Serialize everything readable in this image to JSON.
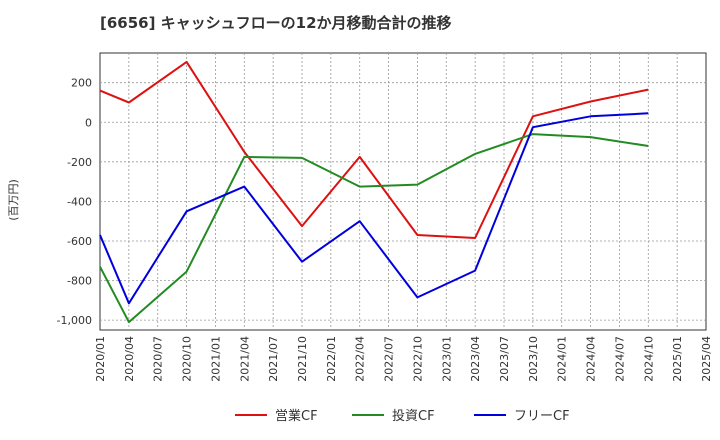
{
  "chart_data": {
    "type": "line",
    "title": "[6656]  キャッシュフローの12か月移動合計の推移",
    "ylabel": "(百万円)",
    "xlabel": "",
    "ylim": [
      -1050,
      350
    ],
    "yticks": [
      200,
      0,
      -200,
      -400,
      -600,
      -800,
      -1000
    ],
    "ytick_labels": [
      "200",
      "0",
      "-200",
      "-400",
      "-600",
      "-800",
      "-1,000"
    ],
    "grid": true,
    "legend_position": "bottom-center",
    "categories": [
      "2020/01",
      "2020/04",
      "2020/07",
      "2020/10",
      "2021/01",
      "2021/04",
      "2021/07",
      "2021/10",
      "2022/01",
      "2022/04",
      "2022/07",
      "2022/10",
      "2023/01",
      "2023/04",
      "2023/07",
      "2023/10",
      "2024/01",
      "2024/04",
      "2024/07",
      "2024/10",
      "2025/01",
      "2025/04"
    ],
    "series": [
      {
        "name": "営業CF",
        "color": "#dd1111",
        "values": [
          160,
          100,
          null,
          305,
          null,
          -150,
          null,
          -525,
          null,
          -175,
          null,
          -570,
          null,
          -585,
          null,
          30,
          null,
          105,
          null,
          165,
          null,
          null
        ]
      },
      {
        "name": "投資CF",
        "color": "#228b22",
        "values": [
          -730,
          -1010,
          null,
          -755,
          null,
          -175,
          null,
          -180,
          null,
          -325,
          null,
          -315,
          null,
          -160,
          null,
          -60,
          null,
          -75,
          null,
          -120,
          null,
          null
        ]
      },
      {
        "name": "フリーCF",
        "color": "#0000dd",
        "values": [
          -570,
          -915,
          null,
          -450,
          null,
          -325,
          null,
          -705,
          null,
          -500,
          null,
          -885,
          null,
          -750,
          null,
          -25,
          null,
          30,
          null,
          45,
          null,
          null
        ]
      }
    ]
  }
}
